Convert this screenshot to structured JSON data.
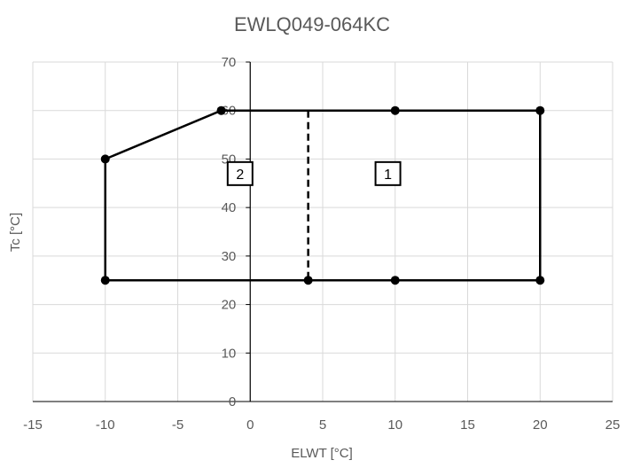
{
  "chart_data": {
    "type": "scatter",
    "title": "EWLQ049-064KC",
    "xlabel": "ELWT [°C]",
    "ylabel": "Tc [°C]",
    "xlim": [
      -15,
      25
    ],
    "ylim": [
      0,
      70
    ],
    "x_ticks": [
      -15,
      -10,
      -5,
      0,
      5,
      10,
      15,
      20,
      25
    ],
    "y_ticks": [
      0,
      10,
      20,
      30,
      40,
      50,
      60,
      70
    ],
    "grid": true,
    "series": [
      {
        "style": "solid",
        "markers": true,
        "points": [
          {
            "x": -2,
            "y": 60
          },
          {
            "x": 10,
            "y": 60
          },
          {
            "x": 20,
            "y": 60
          },
          {
            "x": 20,
            "y": 25
          },
          {
            "x": 10,
            "y": 25
          },
          {
            "x": 4,
            "y": 25
          },
          {
            "x": -10,
            "y": 25
          },
          {
            "x": -10,
            "y": 50
          },
          {
            "x": -2,
            "y": 60
          }
        ]
      },
      {
        "style": "dashed",
        "markers": false,
        "points": [
          {
            "x": 4,
            "y": 60
          },
          {
            "x": 4,
            "y": 25
          }
        ]
      }
    ],
    "annotations": [
      {
        "text": "1",
        "x": 9.5,
        "y": 47
      },
      {
        "text": "2",
        "x": -0.7,
        "y": 47
      }
    ],
    "colors": {
      "line": "#000000",
      "grid": "#d9d9d9",
      "text": "#595959"
    }
  }
}
